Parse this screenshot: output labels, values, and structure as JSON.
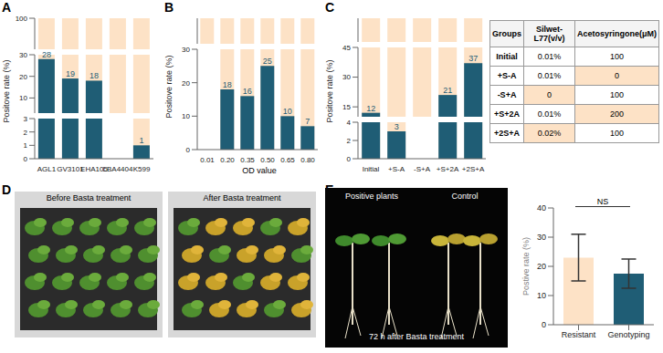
{
  "panel_labels": [
    "A",
    "B",
    "C",
    "D",
    "E"
  ],
  "chart_data": [
    {
      "type": "bar",
      "y_label": "Positove rate (%)",
      "categories": [
        "AGL1",
        "GV3101",
        "EHA105",
        "LBA4404",
        "K599"
      ],
      "values": [
        28,
        19,
        18,
        0,
        1
      ],
      "color": "#1f5d75",
      "data_labels": true,
      "y_segments": [
        {
          "ylim": [
            50,
            100
          ],
          "yticks": [
            50,
            100
          ]
        },
        {
          "ylim": [
            3,
            30
          ],
          "yticks": [
            10,
            20,
            30
          ]
        },
        {
          "ylim": [
            0,
            3
          ],
          "yticks": [
            0,
            1,
            2,
            3
          ]
        }
      ]
    },
    {
      "type": "bar",
      "y_label": "Positove rate (%)",
      "x_label": "OD value",
      "categories": [
        "0.01",
        "0.20",
        "0.35",
        "0.50",
        "0.65",
        "0.80"
      ],
      "values": [
        0,
        18,
        16,
        25,
        10,
        7
      ],
      "color": "#1f5d75",
      "data_labels": true,
      "y_segments": [
        {
          "ylim": [
            80,
            100
          ],
          "yticks": [
            100
          ]
        },
        {
          "ylim": [
            0,
            30
          ],
          "yticks": [
            0,
            10,
            20,
            30
          ]
        }
      ]
    },
    {
      "type": "bar",
      "y_label": "Positove rate (%)",
      "categories": [
        "Initial",
        "+S-A",
        "-S+A",
        "+S+2A",
        "+2S+A"
      ],
      "values": [
        12,
        3,
        0,
        21,
        37
      ],
      "color": "#1f5d75",
      "data_labels": true,
      "y_segments": [
        {
          "ylim": [
            90,
            100
          ],
          "yticks": [
            100
          ]
        },
        {
          "ylim": [
            10,
            45
          ],
          "yticks": [
            15,
            30,
            45
          ]
        },
        {
          "ylim": [
            0,
            4
          ],
          "yticks": [
            0,
            2,
            4
          ]
        }
      ]
    },
    {
      "type": "bar",
      "y_label": "Postive rate (%)",
      "categories": [
        "Resistant",
        "Genotyping"
      ],
      "values": [
        23,
        17.5
      ],
      "errors": [
        8,
        5
      ],
      "colors": [
        "#fde2c6",
        "#1f5d75"
      ],
      "ylim": [
        0,
        40
      ],
      "yticks": [
        0,
        10,
        20,
        30,
        40
      ],
      "annotation": "NS"
    }
  ],
  "table": {
    "header": [
      "Groups",
      "Silwet-L77(v/v)",
      "Acetosyringone(μM)"
    ],
    "rows": [
      [
        "Initial",
        "0.01%",
        "100"
      ],
      [
        "+S-A",
        "0.01%",
        {
          "text": "0",
          "highlight": true
        }
      ],
      [
        "-S+A",
        {
          "text": "0",
          "highlight": true
        },
        "100"
      ],
      [
        "+S+2A",
        "0.01%",
        {
          "text": "200",
          "highlight": true
        }
      ],
      [
        "+2S+A",
        {
          "text": "0.02%",
          "highlight": true
        },
        "100"
      ]
    ]
  },
  "photos": {
    "D": [
      "Before Basta treatment",
      "After Basta treatment"
    ],
    "E": [
      "Positive plants",
      "Control",
      "72 h after Basta treatment"
    ]
  }
}
